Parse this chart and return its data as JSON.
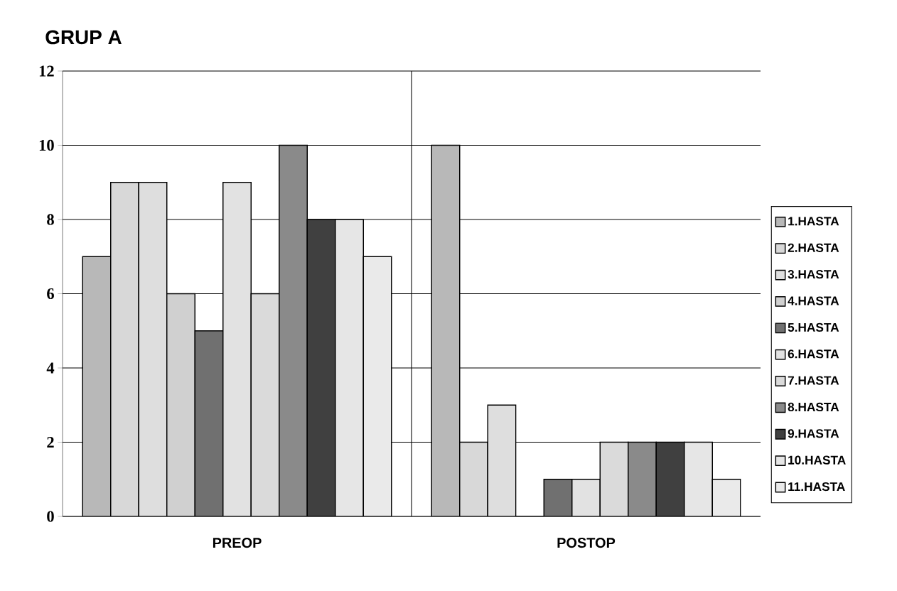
{
  "chart_data": {
    "type": "bar",
    "title": "GRUP A",
    "categories": [
      "PREOP",
      "POSTOP"
    ],
    "series": [
      {
        "name": "1.HASTA",
        "color": "#b8b8b8",
        "values": [
          7,
          10
        ]
      },
      {
        "name": "2.HASTA",
        "color": "#d8d8d8",
        "values": [
          9,
          2
        ]
      },
      {
        "name": "3.HASTA",
        "color": "#dedede",
        "values": [
          9,
          3
        ]
      },
      {
        "name": "4.HASTA",
        "color": "#d0d0d0",
        "values": [
          6,
          0
        ]
      },
      {
        "name": "5.HASTA",
        "color": "#707070",
        "values": [
          5,
          1
        ]
      },
      {
        "name": "6.HASTA",
        "color": "#e2e2e2",
        "values": [
          9,
          1
        ]
      },
      {
        "name": "7.HASTA",
        "color": "#dadada",
        "values": [
          6,
          2
        ]
      },
      {
        "name": "8.HASTA",
        "color": "#8a8a8a",
        "values": [
          10,
          2
        ]
      },
      {
        "name": "9.HASTA",
        "color": "#404040",
        "values": [
          8,
          2
        ]
      },
      {
        "name": "10.HASTA",
        "color": "#e6e6e6",
        "values": [
          8,
          2
        ]
      },
      {
        "name": "11.HASTA",
        "color": "#eaeaea",
        "values": [
          7,
          1
        ]
      }
    ],
    "ylim": [
      0,
      12
    ],
    "yticks": [
      0,
      2,
      4,
      6,
      8,
      10,
      12
    ],
    "grid": "y",
    "legend": "right"
  }
}
